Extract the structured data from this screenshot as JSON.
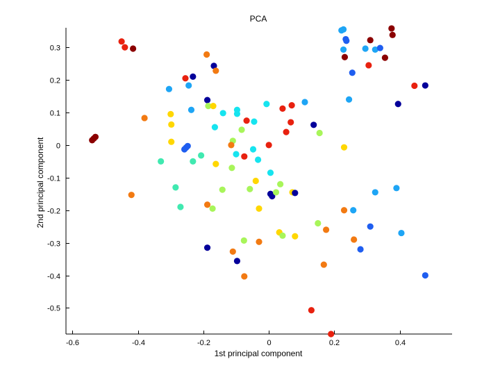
{
  "chart_data": {
    "type": "scatter",
    "title": "PCA",
    "xlabel": "1st principal component",
    "ylabel": "2nd principal component",
    "xlim": [
      -0.62,
      0.56
    ],
    "ylim": [
      -0.58,
      0.36
    ],
    "xticks": [
      -0.6,
      -0.4,
      -0.2,
      0,
      0.2,
      0.4
    ],
    "xtick_labels": [
      "-0.6",
      "-0.4",
      "-0.2",
      "0",
      "0.2",
      "0.4"
    ],
    "yticks": [
      -0.5,
      -0.4,
      -0.3,
      -0.2,
      -0.1,
      0,
      0.1,
      0.2,
      0.3
    ],
    "ytick_labels": [
      "-0.5",
      "-0.4",
      "-0.3",
      "-0.2",
      "-0.1",
      "0",
      "0.1",
      "0.2",
      "0.3"
    ],
    "grid": false,
    "colors": {
      "darkred": "#8b0000",
      "red": "#e8210f",
      "orange": "#f27a12",
      "yellow": "#ffd700",
      "lime": "#a8f55a",
      "teal": "#40e9b0",
      "cyan": "#16e4ef",
      "skyblue": "#1ea5f5",
      "blue": "#1f5ef0",
      "navy": "#04009a"
    },
    "points": [
      {
        "x": -0.54,
        "y": 0.015,
        "c": "darkred"
      },
      {
        "x": -0.535,
        "y": 0.02,
        "c": "darkred"
      },
      {
        "x": -0.53,
        "y": 0.025,
        "c": "darkred"
      },
      {
        "x": -0.45,
        "y": 0.318,
        "c": "red"
      },
      {
        "x": -0.44,
        "y": 0.3,
        "c": "red"
      },
      {
        "x": -0.415,
        "y": 0.296,
        "c": "darkred"
      },
      {
        "x": -0.38,
        "y": 0.083,
        "c": "orange"
      },
      {
        "x": -0.42,
        "y": -0.153,
        "c": "orange"
      },
      {
        "x": -0.305,
        "y": 0.172,
        "c": "skyblue"
      },
      {
        "x": -0.3,
        "y": 0.095,
        "c": "yellow"
      },
      {
        "x": -0.298,
        "y": 0.063,
        "c": "yellow"
      },
      {
        "x": -0.298,
        "y": 0.01,
        "c": "yellow"
      },
      {
        "x": -0.33,
        "y": -0.05,
        "c": "teal"
      },
      {
        "x": -0.285,
        "y": -0.13,
        "c": "teal"
      },
      {
        "x": -0.27,
        "y": -0.19,
        "c": "teal"
      },
      {
        "x": -0.255,
        "y": 0.205,
        "c": "red"
      },
      {
        "x": -0.245,
        "y": 0.183,
        "c": "skyblue"
      },
      {
        "x": -0.232,
        "y": 0.21,
        "c": "navy"
      },
      {
        "x": -0.237,
        "y": 0.108,
        "c": "skyblue"
      },
      {
        "x": -0.258,
        "y": -0.013,
        "c": "blue"
      },
      {
        "x": -0.253,
        "y": -0.008,
        "c": "blue"
      },
      {
        "x": -0.248,
        "y": -0.003,
        "c": "blue"
      },
      {
        "x": -0.232,
        "y": -0.05,
        "c": "teal"
      },
      {
        "x": -0.207,
        "y": -0.032,
        "c": "teal"
      },
      {
        "x": -0.19,
        "y": 0.278,
        "c": "orange"
      },
      {
        "x": -0.188,
        "y": 0.138,
        "c": "navy"
      },
      {
        "x": -0.185,
        "y": 0.12,
        "c": "lime"
      },
      {
        "x": -0.17,
        "y": 0.12,
        "c": "yellow"
      },
      {
        "x": -0.168,
        "y": 0.243,
        "c": "navy"
      },
      {
        "x": -0.162,
        "y": 0.228,
        "c": "orange"
      },
      {
        "x": -0.165,
        "y": 0.055,
        "c": "cyan"
      },
      {
        "x": -0.162,
        "y": -0.058,
        "c": "yellow"
      },
      {
        "x": -0.14,
        "y": 0.098,
        "c": "cyan"
      },
      {
        "x": -0.188,
        "y": -0.183,
        "c": "orange"
      },
      {
        "x": -0.172,
        "y": -0.195,
        "c": "lime"
      },
      {
        "x": -0.142,
        "y": -0.137,
        "c": "lime"
      },
      {
        "x": -0.188,
        "y": -0.315,
        "c": "navy"
      },
      {
        "x": -0.11,
        "y": -0.327,
        "c": "orange"
      },
      {
        "x": -0.097,
        "y": -0.356,
        "c": "navy"
      },
      {
        "x": -0.075,
        "y": -0.403,
        "c": "orange"
      },
      {
        "x": -0.076,
        "y": -0.293,
        "c": "lime"
      },
      {
        "x": -0.03,
        "y": -0.297,
        "c": "orange"
      },
      {
        "x": -0.097,
        "y": 0.108,
        "c": "cyan"
      },
      {
        "x": -0.097,
        "y": 0.096,
        "c": "cyan"
      },
      {
        "x": -0.083,
        "y": 0.047,
        "c": "lime"
      },
      {
        "x": -0.068,
        "y": 0.075,
        "c": "red"
      },
      {
        "x": -0.045,
        "y": 0.072,
        "c": "cyan"
      },
      {
        "x": -0.11,
        "y": 0.013,
        "c": "lime"
      },
      {
        "x": -0.115,
        "y": 0.0,
        "c": "orange"
      },
      {
        "x": -0.1,
        "y": -0.028,
        "c": "cyan"
      },
      {
        "x": -0.075,
        "y": -0.035,
        "c": "red"
      },
      {
        "x": -0.048,
        "y": -0.013,
        "c": "cyan"
      },
      {
        "x": -0.033,
        "y": -0.045,
        "c": "cyan"
      },
      {
        "x": -0.113,
        "y": -0.07,
        "c": "lime"
      },
      {
        "x": -0.058,
        "y": -0.135,
        "c": "lime"
      },
      {
        "x": -0.04,
        "y": -0.11,
        "c": "yellow"
      },
      {
        "x": -0.03,
        "y": -0.195,
        "c": "yellow"
      },
      {
        "x": 0.0,
        "y": 0.0,
        "c": "red"
      },
      {
        "x": -0.007,
        "y": 0.126,
        "c": "cyan"
      },
      {
        "x": 0.005,
        "y": -0.085,
        "c": "cyan"
      },
      {
        "x": 0.005,
        "y": -0.15,
        "c": "navy"
      },
      {
        "x": 0.01,
        "y": -0.157,
        "c": "navy"
      },
      {
        "x": 0.022,
        "y": -0.145,
        "c": "lime"
      },
      {
        "x": 0.035,
        "y": -0.12,
        "c": "lime"
      },
      {
        "x": 0.032,
        "y": -0.268,
        "c": "yellow"
      },
      {
        "x": 0.042,
        "y": -0.278,
        "c": "lime"
      },
      {
        "x": 0.042,
        "y": 0.112,
        "c": "red"
      },
      {
        "x": 0.053,
        "y": 0.04,
        "c": "red"
      },
      {
        "x": 0.067,
        "y": 0.07,
        "c": "red"
      },
      {
        "x": 0.07,
        "y": 0.122,
        "c": "red"
      },
      {
        "x": 0.072,
        "y": -0.145,
        "c": "yellow"
      },
      {
        "x": 0.08,
        "y": -0.147,
        "c": "navy"
      },
      {
        "x": 0.08,
        "y": -0.28,
        "c": "yellow"
      },
      {
        "x": 0.11,
        "y": 0.132,
        "c": "skyblue"
      },
      {
        "x": 0.137,
        "y": 0.062,
        "c": "navy"
      },
      {
        "x": 0.155,
        "y": 0.037,
        "c": "lime"
      },
      {
        "x": 0.15,
        "y": -0.24,
        "c": "lime"
      },
      {
        "x": 0.175,
        "y": -0.26,
        "c": "orange"
      },
      {
        "x": 0.168,
        "y": -0.367,
        "c": "orange"
      },
      {
        "x": 0.13,
        "y": -0.507,
        "c": "red"
      },
      {
        "x": 0.19,
        "y": -0.58,
        "c": "red"
      },
      {
        "x": 0.222,
        "y": 0.352,
        "c": "skyblue"
      },
      {
        "x": 0.228,
        "y": 0.355,
        "c": "skyblue"
      },
      {
        "x": 0.235,
        "y": 0.325,
        "c": "blue"
      },
      {
        "x": 0.237,
        "y": 0.32,
        "c": "blue"
      },
      {
        "x": 0.228,
        "y": 0.293,
        "c": "skyblue"
      },
      {
        "x": 0.232,
        "y": 0.27,
        "c": "darkred"
      },
      {
        "x": 0.255,
        "y": 0.222,
        "c": "blue"
      },
      {
        "x": 0.245,
        "y": 0.14,
        "c": "skyblue"
      },
      {
        "x": 0.23,
        "y": -0.007,
        "c": "yellow"
      },
      {
        "x": 0.23,
        "y": -0.2,
        "c": "orange"
      },
      {
        "x": 0.258,
        "y": -0.2,
        "c": "skyblue"
      },
      {
        "x": 0.26,
        "y": -0.29,
        "c": "orange"
      },
      {
        "x": 0.28,
        "y": -0.32,
        "c": "blue"
      },
      {
        "x": 0.295,
        "y": 0.296,
        "c": "skyblue"
      },
      {
        "x": 0.305,
        "y": 0.245,
        "c": "red"
      },
      {
        "x": 0.31,
        "y": 0.322,
        "c": "darkred"
      },
      {
        "x": 0.325,
        "y": 0.293,
        "c": "skyblue"
      },
      {
        "x": 0.34,
        "y": 0.298,
        "c": "blue"
      },
      {
        "x": 0.355,
        "y": 0.268,
        "c": "darkred"
      },
      {
        "x": 0.375,
        "y": 0.358,
        "c": "darkred"
      },
      {
        "x": 0.378,
        "y": 0.338,
        "c": "darkred"
      },
      {
        "x": 0.31,
        "y": -0.25,
        "c": "blue"
      },
      {
        "x": 0.325,
        "y": -0.145,
        "c": "skyblue"
      },
      {
        "x": 0.39,
        "y": -0.132,
        "c": "skyblue"
      },
      {
        "x": 0.395,
        "y": 0.126,
        "c": "navy"
      },
      {
        "x": 0.405,
        "y": -0.27,
        "c": "skyblue"
      },
      {
        "x": 0.445,
        "y": 0.182,
        "c": "red"
      },
      {
        "x": 0.478,
        "y": 0.183,
        "c": "navy"
      },
      {
        "x": 0.478,
        "y": -0.4,
        "c": "blue"
      }
    ]
  }
}
